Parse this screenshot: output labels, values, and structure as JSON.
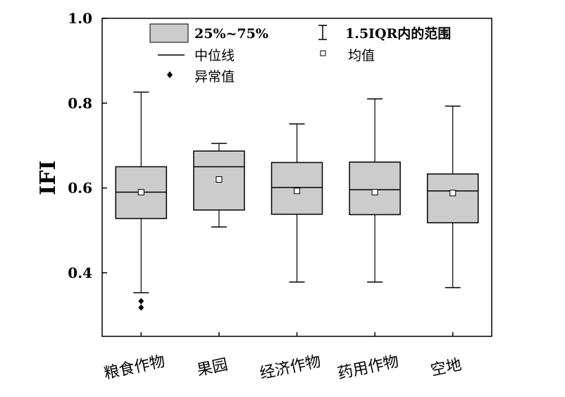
{
  "chart_data": {
    "type": "box",
    "ylabel": "IFI",
    "ylim": [
      0.25,
      1.0
    ],
    "yticks": [
      "0.4",
      "0.6",
      "0.8",
      "1.0"
    ],
    "ytick_values": [
      0.4,
      0.6,
      0.8,
      1.0
    ],
    "colors": {
      "box_fill": "#cccccc",
      "stroke": "#000000"
    },
    "legend": {
      "iqr_box": "25%~75%",
      "whisker_range": "1.5IQR内的范围",
      "median": "中位线",
      "mean": "均值",
      "outlier": "异常值"
    },
    "categories": [
      "粮食作物",
      "果园",
      "经济作物",
      "药用作物",
      "空地"
    ],
    "boxes": [
      {
        "whisker_low": 0.353,
        "q1": 0.528,
        "median": 0.59,
        "q3": 0.65,
        "whisker_high": 0.826,
        "mean": 0.59,
        "outliers": [
          0.333,
          0.318
        ]
      },
      {
        "whisker_low": 0.508,
        "q1": 0.548,
        "median": 0.65,
        "q3": 0.687,
        "whisker_high": 0.705,
        "mean": 0.62,
        "outliers": []
      },
      {
        "whisker_low": 0.378,
        "q1": 0.538,
        "median": 0.601,
        "q3": 0.66,
        "whisker_high": 0.751,
        "mean": 0.593,
        "outliers": []
      },
      {
        "whisker_low": 0.378,
        "q1": 0.537,
        "median": 0.596,
        "q3": 0.661,
        "whisker_high": 0.81,
        "mean": 0.59,
        "outliers": []
      },
      {
        "whisker_low": 0.365,
        "q1": 0.518,
        "median": 0.593,
        "q3": 0.633,
        "whisker_high": 0.793,
        "mean": 0.588,
        "outliers": []
      }
    ]
  }
}
